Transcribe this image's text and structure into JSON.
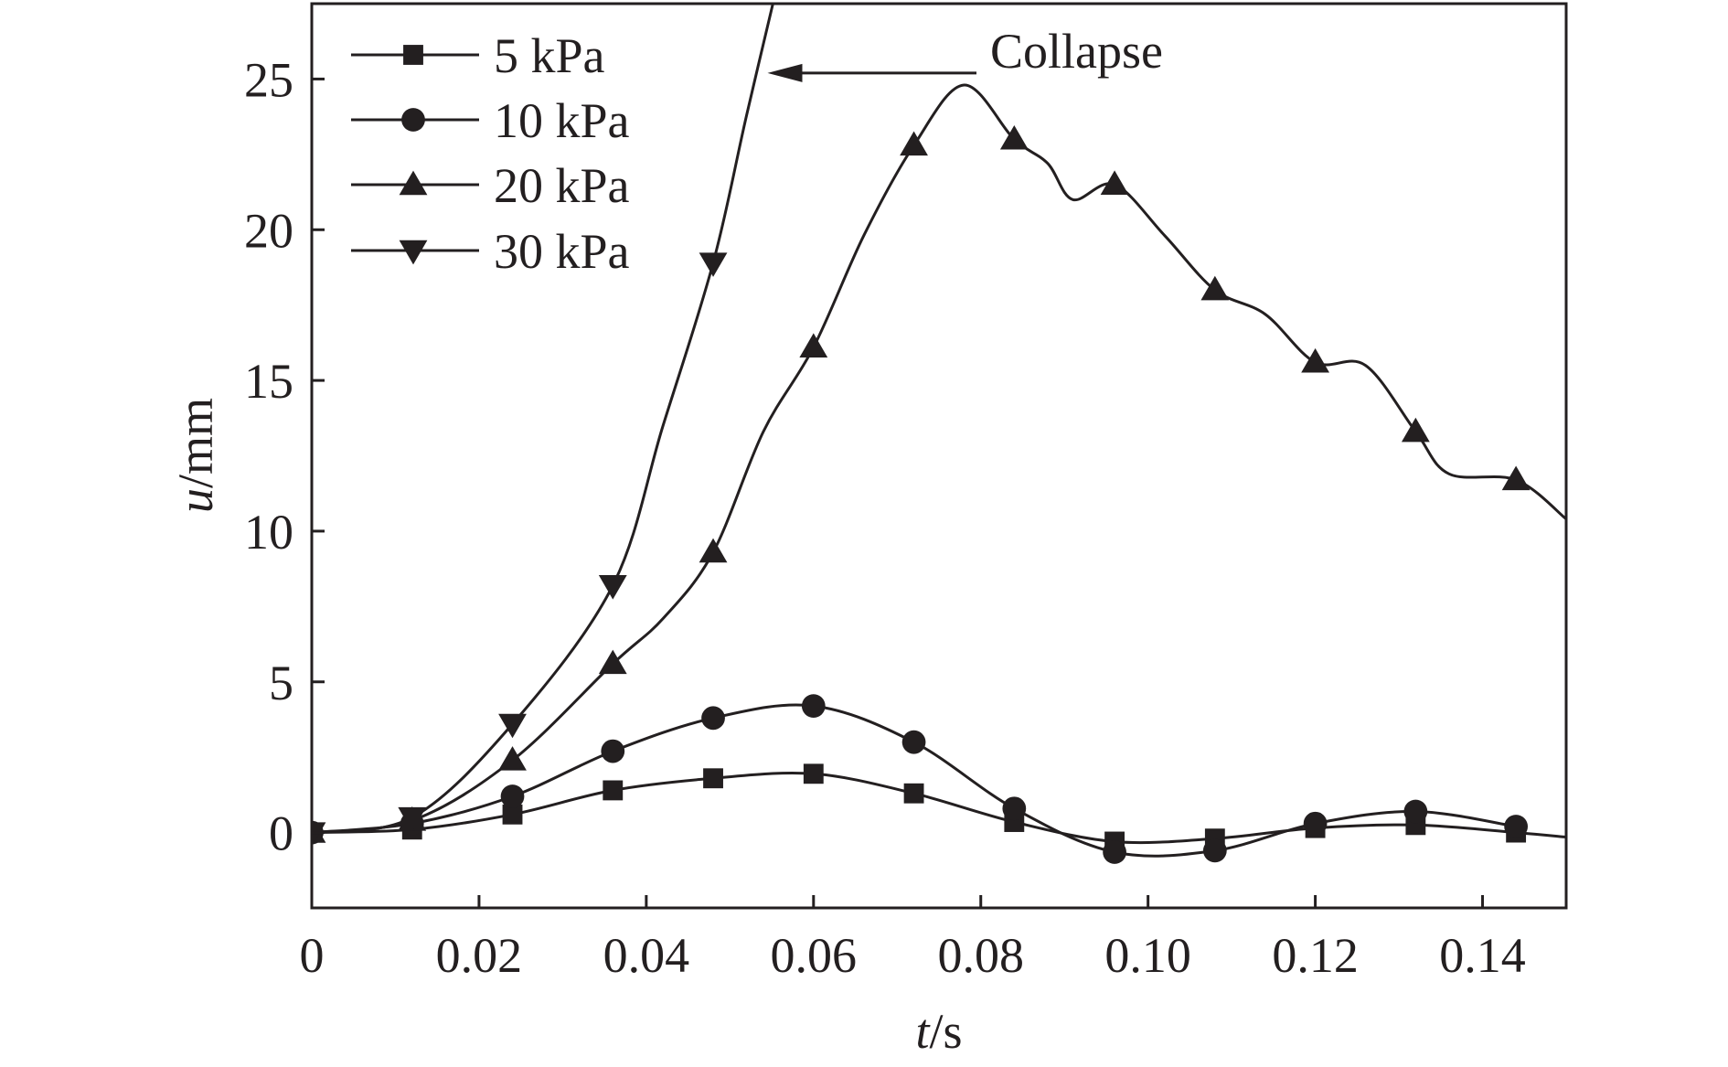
{
  "chart_data": {
    "type": "line",
    "xlabel_var": "t",
    "xlabel_unit": "/s",
    "ylabel_var": "u",
    "ylabel_unit": "/mm",
    "xlim": [
      0,
      0.15
    ],
    "ylim": [
      -2.5,
      27.5
    ],
    "xticks": [
      0,
      0.02,
      0.04,
      0.06,
      0.08,
      0.1,
      0.12,
      0.14
    ],
    "xtick_labels": [
      "0",
      "0.02",
      "0.04",
      "0.06",
      "0.08",
      "0.10",
      "0.12",
      "0.14"
    ],
    "yticks": [
      0,
      5,
      10,
      15,
      20,
      25
    ],
    "ytick_labels": [
      "0",
      "5",
      "10",
      "15",
      "20",
      "25"
    ],
    "grid": false,
    "legend_position": "top-left",
    "annotation": {
      "text": "Collapse",
      "arrow_to": [
        0.0545,
        25.2
      ]
    },
    "series": [
      {
        "name": "5 kPa",
        "marker": "square",
        "x": [
          0,
          0.012,
          0.024,
          0.036,
          0.048,
          0.06,
          0.072,
          0.084,
          0.096,
          0.108,
          0.12,
          0.132,
          0.144,
          0.15
        ],
        "y": [
          0,
          0.1,
          0.6,
          1.4,
          1.8,
          1.95,
          1.3,
          0.35,
          -0.3,
          -0.2,
          0.15,
          0.25,
          0.0,
          -0.15
        ],
        "marker_x": [
          0,
          0.012,
          0.024,
          0.036,
          0.048,
          0.06,
          0.072,
          0.084,
          0.096,
          0.108,
          0.12,
          0.132,
          0.144
        ],
        "marker_y": [
          0,
          0.1,
          0.6,
          1.4,
          1.8,
          1.95,
          1.3,
          0.35,
          -0.3,
          -0.2,
          0.15,
          0.25,
          0.0
        ]
      },
      {
        "name": "10 kPa",
        "marker": "circle",
        "x": [
          0,
          0.012,
          0.024,
          0.036,
          0.048,
          0.06,
          0.072,
          0.084,
          0.096,
          0.108,
          0.12,
          0.132,
          0.144
        ],
        "y": [
          0,
          0.3,
          1.2,
          2.7,
          3.8,
          4.2,
          3.0,
          0.8,
          -0.65,
          -0.6,
          0.3,
          0.7,
          0.2
        ],
        "marker_x": [
          0,
          0.012,
          0.024,
          0.036,
          0.048,
          0.06,
          0.072,
          0.084,
          0.096,
          0.108,
          0.12,
          0.132,
          0.144
        ],
        "marker_y": [
          0,
          0.3,
          1.2,
          2.7,
          3.8,
          4.2,
          3.0,
          0.8,
          -0.65,
          -0.6,
          0.3,
          0.7,
          0.2
        ]
      },
      {
        "name": "20 kPa",
        "marker": "triangle-up",
        "x": [
          0,
          0.012,
          0.024,
          0.036,
          0.042,
          0.048,
          0.054,
          0.06,
          0.066,
          0.072,
          0.078,
          0.084,
          0.088,
          0.091,
          0.096,
          0.102,
          0.108,
          0.114,
          0.12,
          0.126,
          0.132,
          0.136,
          0.144,
          0.15
        ],
        "y": [
          0,
          0.4,
          2.4,
          5.6,
          7.1,
          9.3,
          13.3,
          16.1,
          19.8,
          22.8,
          24.8,
          23.0,
          22.2,
          21.0,
          21.5,
          19.8,
          18.0,
          17.2,
          15.6,
          15.5,
          13.3,
          11.9,
          11.7,
          10.4
        ],
        "marker_x": [
          0,
          0.012,
          0.024,
          0.036,
          0.048,
          0.06,
          0.072,
          0.084,
          0.096,
          0.108,
          0.12,
          0.132,
          0.144
        ],
        "marker_y": [
          0,
          0.4,
          2.4,
          5.6,
          9.3,
          16.1,
          22.8,
          23.0,
          21.5,
          18.0,
          15.6,
          13.3,
          11.7
        ]
      },
      {
        "name": "30 kPa",
        "marker": "triangle-down",
        "x": [
          0,
          0.012,
          0.024,
          0.036,
          0.042,
          0.048,
          0.052,
          0.056
        ],
        "y": [
          0,
          0.5,
          3.6,
          8.2,
          13.5,
          18.9,
          23.8,
          28.5
        ],
        "marker_x": [
          0,
          0.012,
          0.024,
          0.036,
          0.048
        ],
        "marker_y": [
          0,
          0.5,
          3.6,
          8.2,
          18.9
        ]
      }
    ]
  }
}
